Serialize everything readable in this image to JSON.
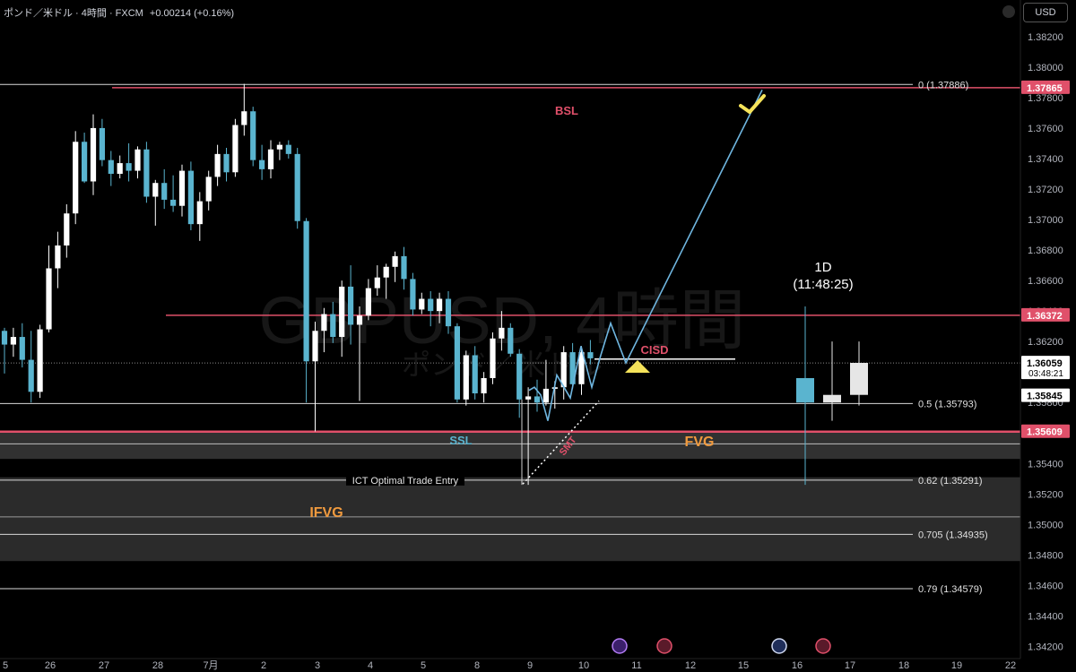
{
  "header": {
    "symbol_text": "ポンド／米ドル · 4時間 · FXCM",
    "change": "+0.00214 (+0.16%)"
  },
  "currency_button": "USD",
  "watermark": {
    "line1": "GBPUSD, 4時間",
    "line2": "ポンド／米ドル"
  },
  "colors": {
    "up": "#ffffff",
    "down": "#5ab4cf",
    "red_line": "#e0506a",
    "blue_line": "#6fb6e0",
    "zone": "#3a3a3a",
    "fvg_text": "#f09a3e",
    "ssl_text": "#5ab4cf",
    "bsl_text": "#e0506a",
    "check": "#f5e35a",
    "triangle": "#f5e35a"
  },
  "chart_data": {
    "type": "candlestick",
    "y_range": [
      1.3415,
      1.3844
    ],
    "price_ticks": [
      "1.38200",
      "1.38000",
      "1.37800",
      "1.37600",
      "1.37400",
      "1.37200",
      "1.37000",
      "1.36800",
      "1.36600",
      "1.36400",
      "1.36200",
      "1.36000",
      "1.35800",
      "1.35600",
      "1.35400",
      "1.35200",
      "1.35000",
      "1.34800",
      "1.34600",
      "1.34400",
      "1.34200"
    ],
    "date_ticks": [
      "5",
      "26",
      "27",
      "28",
      "7月",
      "2",
      "3",
      "4",
      "5",
      "8",
      "9",
      "10",
      "11",
      "12",
      "15",
      "16",
      "17",
      "18",
      "19",
      "22"
    ],
    "price_labels": [
      {
        "text": "1.37865",
        "price": 1.37865,
        "style": "red"
      },
      {
        "text": "1.36372",
        "price": 1.36372,
        "style": "red"
      },
      {
        "text": "1.36059",
        "price": 1.36059,
        "style": "white",
        "countdown": "03:48:21"
      },
      {
        "text": "1.35845",
        "price": 1.35845,
        "style": "white"
      },
      {
        "text": "1.35609",
        "price": 1.35609,
        "style": "red"
      }
    ],
    "fib_levels": [
      {
        "label": "0 (1.37886)",
        "price": 1.37886
      },
      {
        "label": "0.5 (1.35793)",
        "price": 1.35793
      },
      {
        "label": "0.62 (1.35291)",
        "price": 1.35291
      },
      {
        "label": "0.705 (1.34935)",
        "price": 1.34935
      },
      {
        "label": "0.79 (1.34579)",
        "price": 1.34579
      }
    ],
    "annotations": {
      "bsl": "BSL",
      "ssl": "SSL",
      "fvg": "FVG",
      "ifvg": "IFVG",
      "cisd": "CISD",
      "smt": "SMT",
      "ote": "ICT Optimal Trade Entry",
      "tf": "1D",
      "timer": "(11:48:25)"
    },
    "candles_4h": [
      [
        1.3627,
        1.3629,
        1.3599,
        1.3618
      ],
      [
        1.3618,
        1.3629,
        1.361,
        1.3623
      ],
      [
        1.3623,
        1.3632,
        1.3603,
        1.3608
      ],
      [
        1.3608,
        1.3627,
        1.358,
        1.3587
      ],
      [
        1.3587,
        1.3631,
        1.3583,
        1.3628
      ],
      [
        1.3628,
        1.3683,
        1.3626,
        1.3668
      ],
      [
        1.3668,
        1.3692,
        1.3655,
        1.3683
      ],
      [
        1.3683,
        1.371,
        1.3675,
        1.3704
      ],
      [
        1.3704,
        1.3758,
        1.3697,
        1.3751
      ],
      [
        1.3751,
        1.3757,
        1.3724,
        1.3725
      ],
      [
        1.3725,
        1.3769,
        1.3716,
        1.376
      ],
      [
        1.376,
        1.3766,
        1.3735,
        1.3739
      ],
      [
        1.3739,
        1.3745,
        1.3722,
        1.373
      ],
      [
        1.373,
        1.3742,
        1.3727,
        1.3737
      ],
      [
        1.3737,
        1.375,
        1.3725,
        1.3732
      ],
      [
        1.3732,
        1.3748,
        1.3727,
        1.3746
      ],
      [
        1.3746,
        1.3751,
        1.3711,
        1.3715
      ],
      [
        1.3715,
        1.3726,
        1.3696,
        1.3724
      ],
      [
        1.3724,
        1.3733,
        1.3707,
        1.3713
      ],
      [
        1.3713,
        1.3729,
        1.3705,
        1.3709
      ],
      [
        1.3709,
        1.3736,
        1.3702,
        1.3732
      ],
      [
        1.3732,
        1.3738,
        1.3693,
        1.3697
      ],
      [
        1.3697,
        1.3718,
        1.3686,
        1.3712
      ],
      [
        1.3712,
        1.3732,
        1.3706,
        1.3728
      ],
      [
        1.3728,
        1.3749,
        1.3722,
        1.3743
      ],
      [
        1.3743,
        1.3747,
        1.3725,
        1.3731
      ],
      [
        1.3731,
        1.3766,
        1.3728,
        1.3762
      ],
      [
        1.3762,
        1.3789,
        1.3755,
        1.3771
      ],
      [
        1.3771,
        1.3774,
        1.3735,
        1.3739
      ],
      [
        1.3739,
        1.3749,
        1.3726,
        1.3733
      ],
      [
        1.3733,
        1.3752,
        1.3727,
        1.3746
      ],
      [
        1.3746,
        1.3751,
        1.3739,
        1.3749
      ],
      [
        1.3749,
        1.3752,
        1.374,
        1.3743
      ],
      [
        1.3743,
        1.3747,
        1.3694,
        1.3699
      ],
      [
        1.3699,
        1.3701,
        1.358,
        1.3607
      ],
      [
        1.3607,
        1.3633,
        1.3561,
        1.3627
      ],
      [
        1.3627,
        1.3642,
        1.3613,
        1.3638
      ],
      [
        1.3638,
        1.3646,
        1.3619,
        1.3623
      ],
      [
        1.3623,
        1.366,
        1.361,
        1.3656
      ],
      [
        1.3656,
        1.367,
        1.3618,
        1.3631
      ],
      [
        1.3631,
        1.3643,
        1.3581,
        1.3637
      ],
      [
        1.3637,
        1.3661,
        1.3634,
        1.3655
      ],
      [
        1.3655,
        1.367,
        1.365,
        1.3662
      ],
      [
        1.3662,
        1.3671,
        1.3648,
        1.3669
      ],
      [
        1.3669,
        1.3679,
        1.3659,
        1.3676
      ],
      [
        1.3676,
        1.3682,
        1.3654,
        1.3661
      ],
      [
        1.3661,
        1.3665,
        1.3637,
        1.3641
      ],
      [
        1.3641,
        1.3652,
        1.3638,
        1.3648
      ],
      [
        1.3648,
        1.3653,
        1.363,
        1.364
      ],
      [
        1.364,
        1.3652,
        1.3632,
        1.3648
      ],
      [
        1.3648,
        1.3653,
        1.3625,
        1.363
      ],
      [
        1.363,
        1.3632,
        1.358,
        1.3582
      ],
      [
        1.3582,
        1.3614,
        1.3578,
        1.3611
      ],
      [
        1.3611,
        1.3617,
        1.3582,
        1.3586
      ],
      [
        1.3586,
        1.36,
        1.358,
        1.3596
      ],
      [
        1.3596,
        1.3626,
        1.3592,
        1.3622
      ],
      [
        1.3622,
        1.364,
        1.3614,
        1.3629
      ],
      [
        1.3629,
        1.3632,
        1.361,
        1.3612
      ],
      [
        1.3612,
        1.3615,
        1.357,
        1.3582
      ],
      [
        1.3582,
        1.359,
        1.3526,
        1.3584
      ],
      [
        1.3584,
        1.3595,
        1.3574,
        1.358
      ],
      [
        1.358,
        1.3608,
        1.3578,
        1.3589
      ],
      [
        1.3589,
        1.3594,
        1.3576,
        1.359
      ],
      [
        1.359,
        1.3617,
        1.3582,
        1.3613
      ],
      [
        1.3613,
        1.3619,
        1.3589,
        1.3592
      ],
      [
        1.3592,
        1.3617,
        1.3585,
        1.3613
      ],
      [
        1.3613,
        1.3621,
        1.3605,
        1.3609
      ]
    ],
    "candles_1d": [
      [
        1.3596,
        1.3643,
        1.3526,
        1.358
      ],
      [
        1.358,
        1.362,
        1.3568,
        1.3585
      ],
      [
        1.3585,
        1.362,
        1.3578,
        1.3606
      ]
    ]
  }
}
